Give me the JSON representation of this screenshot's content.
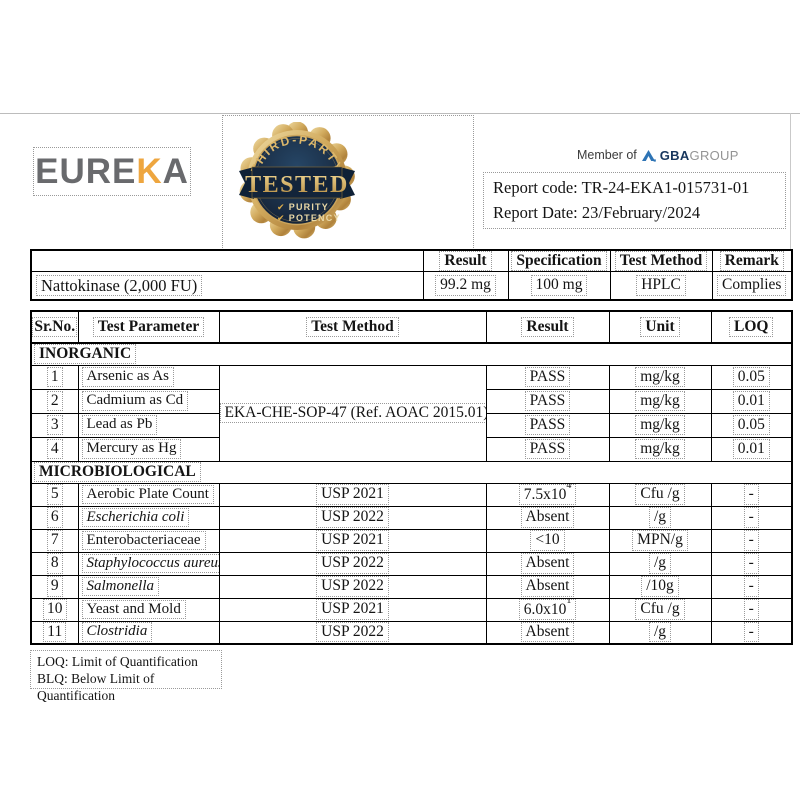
{
  "brand": {
    "name_part1": "EURE",
    "name_part2": "K",
    "name_part3": "A",
    "gray": "#696a6d",
    "orange": "#eea63f"
  },
  "badge": {
    "arc_text": "THIRD-PARTY",
    "center_text": "TESTED",
    "check_mark": "✔",
    "check1": "PURITY",
    "check2": "POTENCY",
    "gold": "#c9a24a",
    "navy": "#14263c"
  },
  "member": {
    "prefix": "Member of",
    "bold": "GBA",
    "light": "GROUP",
    "blue": "#2e74b5"
  },
  "report": {
    "code_line": "Report code: TR-24-EKA1-015731-01",
    "date_line": "Report Date: 23/February/2024"
  },
  "top_table": {
    "headers": [
      "",
      "Result",
      "Specification",
      "Test Method",
      "Remark"
    ],
    "row": {
      "name": "Nattokinase (2,000 FU)",
      "result": "99.2 mg",
      "specification": "100 mg",
      "test_method": "HPLC",
      "remark": "Complies"
    }
  },
  "main_table": {
    "headers": [
      "Sr.No.",
      "Test Parameter",
      "Test Method",
      "Result",
      "Unit",
      "LOQ"
    ],
    "sections": [
      {
        "title": "INORGANIC",
        "merged_method": "EKA-CHE-SOP-47 (Ref. AOAC 2015.01)",
        "rows": [
          {
            "sr": "1",
            "param": "Arsenic as As",
            "italic": false,
            "result": "PASS",
            "unit": "mg/kg",
            "loq": "0.05"
          },
          {
            "sr": "2",
            "param": "Cadmium as Cd",
            "italic": false,
            "result": "PASS",
            "unit": "mg/kg",
            "loq": "0.01"
          },
          {
            "sr": "3",
            "param": "Lead as Pb",
            "italic": false,
            "result": "PASS",
            "unit": "mg/kg",
            "loq": "0.05"
          },
          {
            "sr": "4",
            "param": "Mercury as Hg",
            "italic": false,
            "result": "PASS",
            "unit": "mg/kg",
            "loq": "0.01"
          }
        ]
      },
      {
        "title": "MICROBIOLOGICAL",
        "merged_method": null,
        "rows": [
          {
            "sr": "5",
            "param": "Aerobic Plate Count",
            "italic": false,
            "method": "USP 2021",
            "result": "7.5x10",
            "result_sup": "4",
            "unit": "Cfu /g",
            "loq": "-"
          },
          {
            "sr": "6",
            "param": "Escherichia coli",
            "italic": true,
            "method": "USP 2022",
            "result": "Absent",
            "unit": "/g",
            "loq": "-"
          },
          {
            "sr": "7",
            "param": "Enterobacteriaceae",
            "italic": false,
            "method": "USP 2021",
            "result": "<10",
            "unit": "MPN/g",
            "loq": "-"
          },
          {
            "sr": "8",
            "param": "Staphylococcus aureus",
            "italic": true,
            "method": "USP 2022",
            "result": "Absent",
            "unit": "/g",
            "loq": "-"
          },
          {
            "sr": "9",
            "param": "Salmonella",
            "italic": true,
            "method": "USP 2022",
            "result": "Absent",
            "unit": "/10g",
            "loq": "-"
          },
          {
            "sr": "10",
            "param": "Yeast and Mold",
            "italic": false,
            "method": "USP 2021",
            "result": "6.0x10",
            "result_sup": "1",
            "unit": "Cfu /g",
            "loq": "-"
          },
          {
            "sr": "11",
            "param": "Clostridia",
            "italic": true,
            "method": "USP 2022",
            "result": "Absent",
            "unit": "/g",
            "loq": "-"
          }
        ]
      }
    ]
  },
  "footer": {
    "line1": "LOQ: Limit of Quantification",
    "line2": "BLQ: Below Limit of Quantification"
  }
}
